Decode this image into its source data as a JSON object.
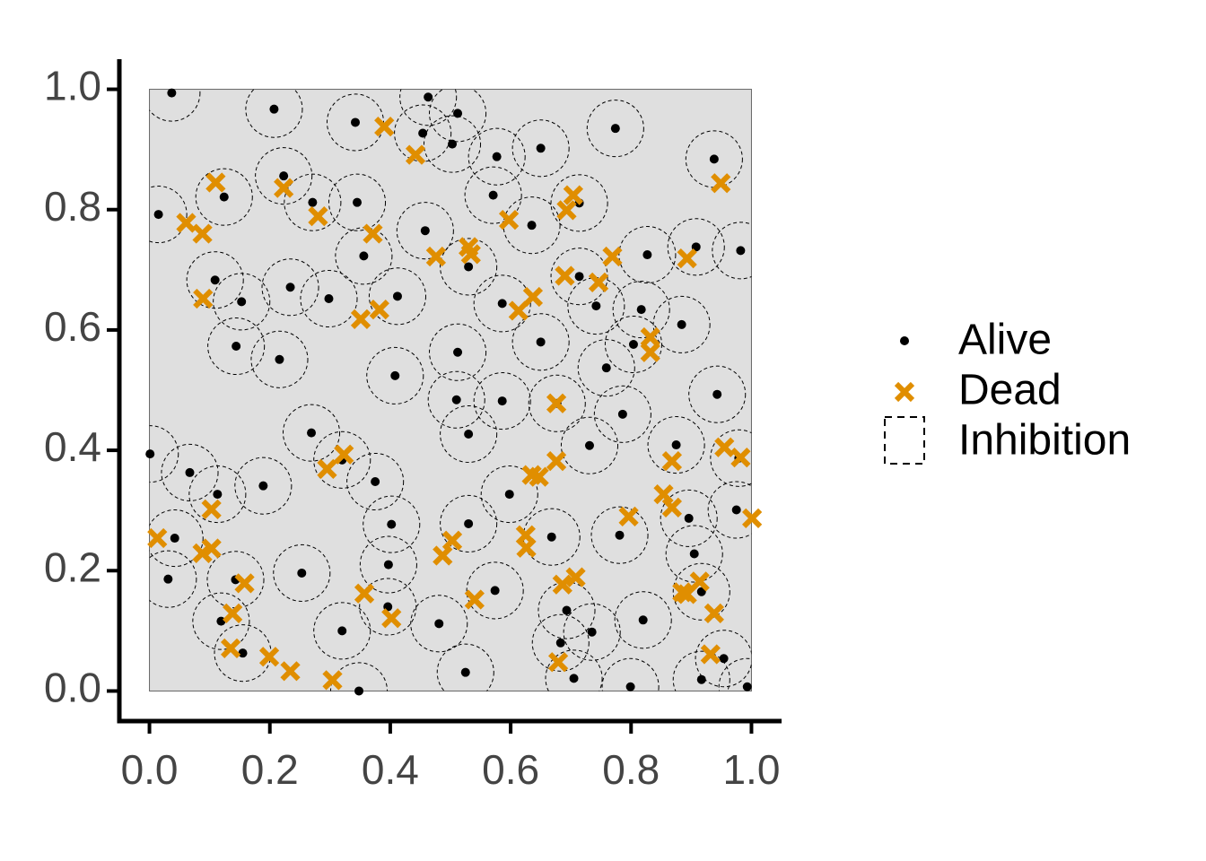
{
  "chart_data": {
    "type": "scatter",
    "xlim": [
      -0.05,
      1.05
    ],
    "ylim": [
      -0.05,
      1.05
    ],
    "xticks": [
      {
        "value": 0,
        "label": "0.0"
      },
      0.2,
      0.4,
      0.6,
      0.8,
      {
        "value": 1,
        "label": "1.0"
      }
    ],
    "yticks": [
      {
        "value": 0,
        "label": "0.0"
      },
      0.2,
      0.4,
      0.6,
      0.8,
      {
        "value": 1,
        "label": "1.0"
      }
    ],
    "inhibition": {
      "name": "Inhibition",
      "radius": 0.047
    },
    "series": [
      {
        "name": "Alive",
        "color": "#000000",
        "x": [
          0.037,
          0.207,
          0.463,
          0.512,
          0.342,
          0.454,
          0.503,
          0.65,
          0.774,
          0.938,
          0.223,
          0.577,
          0.124,
          0.015,
          0.271,
          0.345,
          0.571,
          0.714,
          0.635,
          0.458,
          0.908,
          0.982,
          0.827,
          0.356,
          0.53,
          0.714,
          0.109,
          0.234,
          0.412,
          0.298,
          0.153,
          0.586,
          0.742,
          0.817,
          0.884,
          0.804,
          0.65,
          0.144,
          0.512,
          0.216,
          0.408,
          0.759,
          0.943,
          0.51,
          0.586,
          0.677,
          0.786,
          0.269,
          0.53,
          0.731,
          0.875,
          0.001,
          0.979,
          0.32,
          0.067,
          0.375,
          0.189,
          0.113,
          0.598,
          0.975,
          0.402,
          0.896,
          0.53,
          0.042,
          0.668,
          0.781,
          0.905,
          0.397,
          0.253,
          0.031,
          0.143,
          0.574,
          0.917,
          0.396,
          0.693,
          0.119,
          0.481,
          0.82,
          0.32,
          0.735,
          0.683,
          0.155,
          0.954,
          0.525,
          0.705,
          0.917,
          0.799,
          0.993,
          0.348
        ],
        "values": [
          0.994,
          0.967,
          0.987,
          0.96,
          0.945,
          0.927,
          0.909,
          0.902,
          0.935,
          0.884,
          0.856,
          0.888,
          0.821,
          0.792,
          0.812,
          0.812,
          0.824,
          0.811,
          0.774,
          0.765,
          0.738,
          0.732,
          0.725,
          0.723,
          0.705,
          0.689,
          0.683,
          0.671,
          0.656,
          0.652,
          0.647,
          0.644,
          0.64,
          0.634,
          0.609,
          0.576,
          0.58,
          0.573,
          0.563,
          0.551,
          0.524,
          0.537,
          0.493,
          0.484,
          0.482,
          0.478,
          0.46,
          0.429,
          0.427,
          0.408,
          0.409,
          0.394,
          0.387,
          0.384,
          0.363,
          0.348,
          0.341,
          0.327,
          0.327,
          0.301,
          0.277,
          0.287,
          0.278,
          0.254,
          0.256,
          0.259,
          0.228,
          0.21,
          0.196,
          0.186,
          0.185,
          0.167,
          0.165,
          0.14,
          0.134,
          0.116,
          0.112,
          0.118,
          0.1,
          0.098,
          0.08,
          0.063,
          0.054,
          0.031,
          0.021,
          0.019,
          0.007,
          0.007,
          0.0
        ]
      },
      {
        "name": "Dead",
        "color": "#e08e00",
        "x": [
          0.39,
          0.442,
          0.949,
          0.11,
          0.223,
          0.704,
          0.693,
          0.28,
          0.597,
          0.061,
          0.088,
          0.371,
          0.53,
          0.534,
          0.476,
          0.769,
          0.893,
          0.69,
          0.746,
          0.089,
          0.637,
          0.613,
          0.382,
          0.351,
          0.832,
          0.832,
          0.676,
          0.955,
          0.982,
          0.323,
          0.295,
          0.676,
          0.868,
          0.635,
          0.647,
          0.854,
          0.868,
          1.001,
          0.796,
          0.103,
          0.013,
          0.625,
          0.626,
          0.503,
          0.487,
          0.103,
          0.088,
          0.158,
          0.708,
          0.686,
          0.914,
          0.893,
          0.885,
          0.357,
          0.54,
          0.138,
          0.938,
          0.402,
          0.135,
          0.932,
          0.199,
          0.234,
          0.304,
          0.679
        ],
        "values": [
          0.938,
          0.891,
          0.844,
          0.845,
          0.836,
          0.824,
          0.799,
          0.789,
          0.783,
          0.778,
          0.76,
          0.76,
          0.738,
          0.726,
          0.722,
          0.722,
          0.719,
          0.69,
          0.679,
          0.652,
          0.655,
          0.632,
          0.634,
          0.618,
          0.588,
          0.563,
          0.478,
          0.405,
          0.388,
          0.393,
          0.369,
          0.382,
          0.382,
          0.359,
          0.356,
          0.327,
          0.305,
          0.287,
          0.29,
          0.302,
          0.254,
          0.259,
          0.238,
          0.25,
          0.225,
          0.237,
          0.229,
          0.179,
          0.189,
          0.177,
          0.182,
          0.161,
          0.164,
          0.162,
          0.152,
          0.129,
          0.129,
          0.121,
          0.071,
          0.061,
          0.057,
          0.033,
          0.018,
          0.048
        ]
      }
    ]
  }
}
